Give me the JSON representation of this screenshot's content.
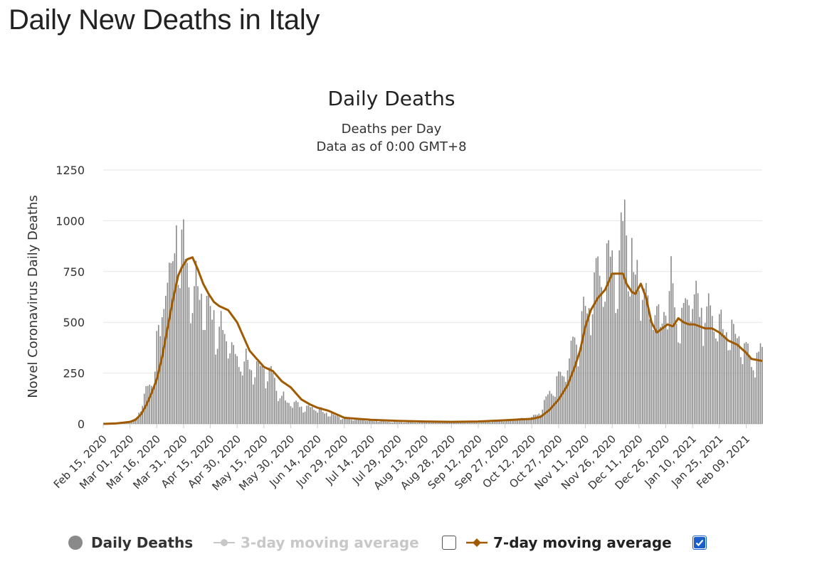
{
  "page": {
    "title": "Daily New Deaths in Italy"
  },
  "legend": {
    "daily": "Daily Deaths",
    "ma3": "3-day moving average",
    "ma7": "7-day moving average",
    "ma3_checked": false,
    "ma7_checked": true
  },
  "colors": {
    "bars": "#8a8a8a",
    "ma7": "#a05a00",
    "ma3": "#c8c8c8",
    "grid": "#e6e6e6",
    "text": "#333333"
  },
  "chart_data": {
    "type": "bar",
    "title": "Daily Deaths",
    "subtitle": [
      "Deaths per Day",
      "Data as of 0:00 GMT+8"
    ],
    "ylabel": "Novel Coronavirus Daily Deaths",
    "xlabel": "",
    "ylim": [
      0,
      1250
    ],
    "yticks": [
      0,
      250,
      500,
      750,
      1000,
      1250
    ],
    "x_range": [
      "2020-02-15",
      "2021-02-18"
    ],
    "xtick_labels": [
      "Feb 15, 2020",
      "Mar 01, 2020",
      "Mar 16, 2020",
      "Mar 31, 2020",
      "Apr 15, 2020",
      "Apr 30, 2020",
      "May 15, 2020",
      "May 30, 2020",
      "Jun 14, 2020",
      "Jun 29, 2020",
      "Jul 14, 2020",
      "Jul 29, 2020",
      "Aug 13, 2020",
      "Aug 28, 2020",
      "Sep 12, 2020",
      "Sep 27, 2020",
      "Oct 12, 2020",
      "Oct 27, 2020",
      "Nov 11, 2020",
      "Nov 26, 2020",
      "Dec 11, 2020",
      "Dec 26, 2020",
      "Jan 10, 2021",
      "Jan 25, 2021",
      "Feb 09, 2021"
    ],
    "grid": true,
    "legend_position": "bottom",
    "series": [
      {
        "name": "Daily Deaths",
        "kind": "bar",
        "x": [
          "2020-02-15",
          "2020-02-22",
          "2020-02-25",
          "2020-03-01",
          "2020-03-05",
          "2020-03-08",
          "2020-03-10",
          "2020-03-12",
          "2020-03-14",
          "2020-03-16",
          "2020-03-18",
          "2020-03-20",
          "2020-03-21",
          "2020-03-23",
          "2020-03-25",
          "2020-03-27",
          "2020-03-28",
          "2020-03-30",
          "2020-04-01",
          "2020-04-03",
          "2020-04-05",
          "2020-04-08",
          "2020-04-12",
          "2020-04-15",
          "2020-04-20",
          "2020-04-25",
          "2020-04-30",
          "2020-05-05",
          "2020-05-10",
          "2020-05-15",
          "2020-05-20",
          "2020-05-25",
          "2020-05-30",
          "2020-06-05",
          "2020-06-14",
          "2020-06-20",
          "2020-06-29",
          "2020-07-14",
          "2020-07-29",
          "2020-08-13",
          "2020-08-28",
          "2020-09-12",
          "2020-09-27",
          "2020-10-05",
          "2020-10-12",
          "2020-10-17",
          "2020-10-22",
          "2020-10-27",
          "2020-11-01",
          "2020-11-05",
          "2020-11-08",
          "2020-11-11",
          "2020-11-14",
          "2020-11-17",
          "2020-11-20",
          "2020-11-23",
          "2020-11-26",
          "2020-11-29",
          "2020-12-01",
          "2020-12-03",
          "2020-12-05",
          "2020-12-08",
          "2020-12-11",
          "2020-12-14",
          "2020-12-17",
          "2020-12-20",
          "2020-12-23",
          "2020-12-26",
          "2020-12-29",
          "2021-01-01",
          "2021-01-04",
          "2021-01-07",
          "2021-01-10",
          "2021-01-13",
          "2021-01-16",
          "2021-01-20",
          "2021-01-25",
          "2021-01-30",
          "2021-02-04",
          "2021-02-09",
          "2021-02-14",
          "2021-02-18"
        ],
        "y": [
          0,
          1,
          8,
          8,
          30,
          100,
          170,
          190,
          250,
          370,
          420,
          630,
          790,
          650,
          700,
          910,
          890,
          820,
          790,
          760,
          680,
          620,
          590,
          580,
          470,
          430,
          320,
          300,
          280,
          260,
          220,
          130,
          100,
          85,
          70,
          50,
          25,
          15,
          8,
          8,
          8,
          8,
          15,
          25,
          30,
          60,
          150,
          200,
          300,
          380,
          450,
          550,
          600,
          700,
          740,
          820,
          770,
          720,
          850,
          990,
          820,
          700,
          740,
          600,
          540,
          560,
          450,
          600,
          650,
          460,
          500,
          570,
          600,
          550,
          520,
          500,
          480,
          440,
          420,
          350,
          300,
          350
        ]
      },
      {
        "name": "7-day moving average",
        "kind": "line",
        "x": [
          "2020-02-15",
          "2020-02-22",
          "2020-02-25",
          "2020-03-01",
          "2020-03-04",
          "2020-03-07",
          "2020-03-10",
          "2020-03-13",
          "2020-03-16",
          "2020-03-19",
          "2020-03-22",
          "2020-03-25",
          "2020-03-28",
          "2020-03-30",
          "2020-04-02",
          "2020-04-05",
          "2020-04-08",
          "2020-04-11",
          "2020-04-14",
          "2020-04-17",
          "2020-04-20",
          "2020-04-25",
          "2020-04-30",
          "2020-05-03",
          "2020-05-07",
          "2020-05-10",
          "2020-05-15",
          "2020-05-20",
          "2020-05-25",
          "2020-05-30",
          "2020-06-05",
          "2020-06-10",
          "2020-06-14",
          "2020-06-20",
          "2020-06-29",
          "2020-07-14",
          "2020-07-29",
          "2020-08-13",
          "2020-08-28",
          "2020-09-12",
          "2020-09-27",
          "2020-10-05",
          "2020-10-12",
          "2020-10-17",
          "2020-10-22",
          "2020-10-27",
          "2020-11-01",
          "2020-11-05",
          "2020-11-08",
          "2020-11-11",
          "2020-11-14",
          "2020-11-18",
          "2020-11-22",
          "2020-11-26",
          "2020-11-29",
          "2020-12-02",
          "2020-12-04",
          "2020-12-07",
          "2020-12-09",
          "2020-12-12",
          "2020-12-15",
          "2020-12-18",
          "2020-12-21",
          "2020-12-24",
          "2020-12-27",
          "2020-12-30",
          "2021-01-02",
          "2021-01-05",
          "2021-01-08",
          "2021-01-11",
          "2021-01-14",
          "2021-01-17",
          "2021-01-21",
          "2021-01-25",
          "2021-01-30",
          "2021-02-04",
          "2021-02-09",
          "2021-02-12",
          "2021-02-18"
        ],
        "y": [
          0,
          2,
          5,
          10,
          20,
          45,
          90,
          150,
          220,
          330,
          470,
          610,
          730,
          770,
          810,
          820,
          760,
          690,
          640,
          600,
          580,
          560,
          500,
          440,
          360,
          330,
          280,
          260,
          210,
          180,
          120,
          95,
          80,
          65,
          30,
          20,
          15,
          12,
          10,
          12,
          18,
          22,
          25,
          35,
          70,
          120,
          190,
          280,
          360,
          480,
          560,
          620,
          660,
          740,
          740,
          740,
          690,
          650,
          640,
          690,
          620,
          500,
          450,
          470,
          490,
          480,
          520,
          500,
          490,
          490,
          480,
          470,
          470,
          450,
          410,
          390,
          350,
          320,
          310
        ]
      }
    ]
  }
}
